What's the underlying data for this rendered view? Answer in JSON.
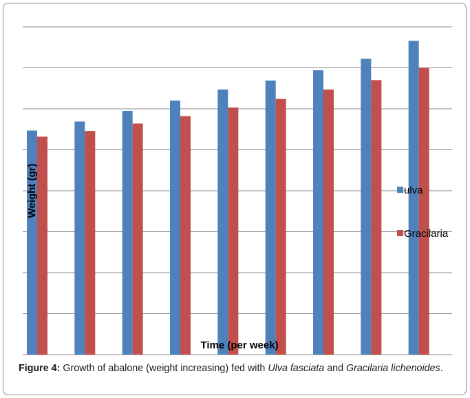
{
  "chart_data": {
    "type": "bar",
    "title": "",
    "xlabel": "Time (per week)",
    "ylabel": "Weight (gr)",
    "categories": [
      "",
      "",
      "",
      "",
      "",
      "",
      "",
      "",
      ""
    ],
    "series": [
      {
        "name": "ulva",
        "color": "#4f81bd",
        "values": [
          5.47,
          5.69,
          5.95,
          6.2,
          6.47,
          6.69,
          6.94,
          7.22,
          7.66
        ]
      },
      {
        "name": "Gracilaria",
        "color": "#c0504d",
        "values": [
          5.32,
          5.46,
          5.64,
          5.82,
          6.03,
          6.24,
          6.47,
          6.7,
          7.0
        ]
      }
    ],
    "ylim": [
      0,
      8
    ],
    "gridlines": true,
    "legend_position": "right"
  },
  "caption": {
    "label": "Figure 4:",
    "part1": " Growth of abalone (weight increasing) fed with ",
    "species1": "Ulva fasciata",
    "part2": " and ",
    "species2": "Gracilaria lichenoides",
    "part3": "."
  }
}
